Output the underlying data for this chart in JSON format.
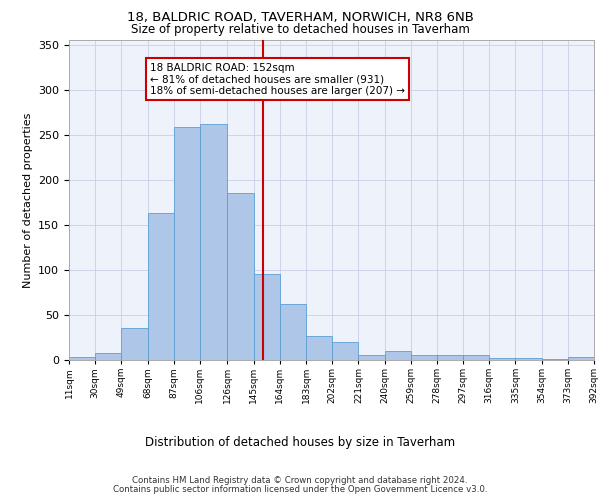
{
  "title1": "18, BALDRIC ROAD, TAVERHAM, NORWICH, NR8 6NB",
  "title2": "Size of property relative to detached houses in Taverham",
  "xlabel": "Distribution of detached houses by size in Taverham",
  "ylabel": "Number of detached properties",
  "property_line_x": 152,
  "bin_edges": [
    11,
    30,
    49,
    68,
    87,
    106,
    126,
    145,
    164,
    183,
    202,
    221,
    240,
    259,
    278,
    297,
    316,
    335,
    354,
    373,
    392
  ],
  "bar_heights": [
    3,
    8,
    35,
    163,
    258,
    262,
    185,
    95,
    62,
    27,
    20,
    5,
    10,
    5,
    6,
    5,
    2,
    2,
    1,
    3
  ],
  "bar_color": "#aec6e8",
  "bar_edge_color": "#5a9fd4",
  "line_color": "#cc0000",
  "annotation_text": "18 BALDRIC ROAD: 152sqm\n← 81% of detached houses are smaller (931)\n18% of semi-detached houses are larger (207) →",
  "annotation_box_color": "white",
  "annotation_box_edge_color": "#cc0000",
  "background_color": "#eef2fb",
  "grid_color": "#c8d0e8",
  "footer1": "Contains HM Land Registry data © Crown copyright and database right 2024.",
  "footer2": "Contains public sector information licensed under the Open Government Licence v3.0.",
  "tick_labels": [
    "11sqm",
    "30sqm",
    "49sqm",
    "68sqm",
    "87sqm",
    "106sqm",
    "126sqm",
    "145sqm",
    "164sqm",
    "183sqm",
    "202sqm",
    "221sqm",
    "240sqm",
    "259sqm",
    "278sqm",
    "297sqm",
    "316sqm",
    "335sqm",
    "354sqm",
    "373sqm",
    "392sqm"
  ],
  "ylim": [
    0,
    355
  ],
  "xlim": [
    11,
    392
  ]
}
